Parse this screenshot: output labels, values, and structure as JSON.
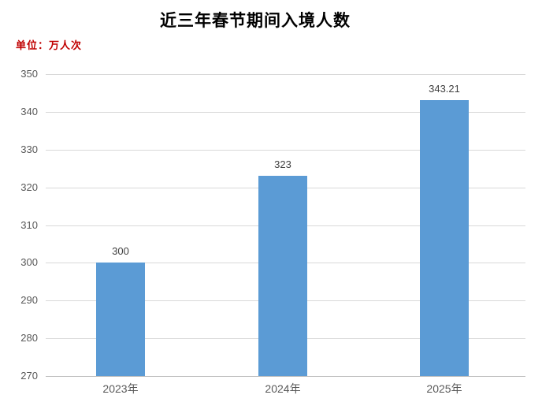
{
  "title": "近三年春节期间入境人数",
  "unit_label": "单位：万人次",
  "colors": {
    "bar": "#5B9BD5",
    "title_text": "#000000",
    "unit_text": "#C00000",
    "tick_text": "#595959",
    "category_text": "#595959",
    "value_label_text": "#404040",
    "gridline": "#D9D9D9",
    "axis_line": "#BFBFBF",
    "background": "#FFFFFF"
  },
  "chart_data": {
    "type": "bar",
    "title": "近三年春节期间入境人数",
    "ylabel": "单位：万人次",
    "xlabel": "",
    "categories": [
      "2023年",
      "2024年",
      "2025年"
    ],
    "values": [
      300,
      323,
      343.21
    ],
    "value_labels": [
      "300",
      "323",
      "343.21"
    ],
    "ylim": [
      270,
      350
    ],
    "ytick_step": 10,
    "ytick_labels": [
      "270",
      "280",
      "290",
      "300",
      "310",
      "320",
      "330",
      "340",
      "350"
    ],
    "grid": true,
    "legend_position": "none",
    "bar_color": "#5B9BD5"
  }
}
